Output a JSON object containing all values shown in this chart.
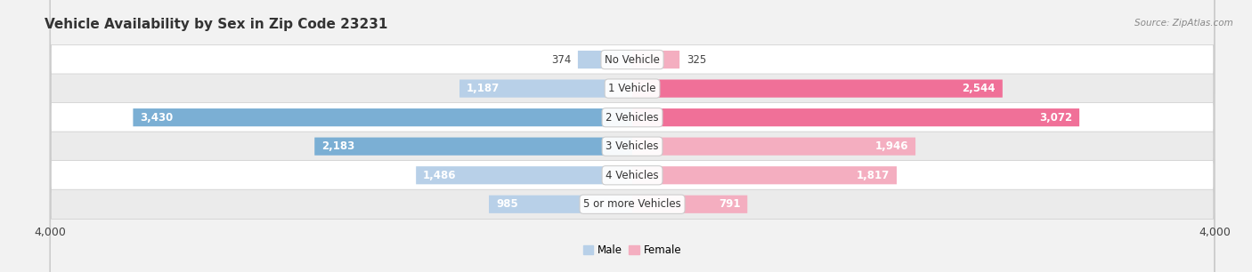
{
  "title": "Vehicle Availability by Sex in Zip Code 23231",
  "source": "Source: ZipAtlas.com",
  "categories": [
    "No Vehicle",
    "1 Vehicle",
    "2 Vehicles",
    "3 Vehicles",
    "4 Vehicles",
    "5 or more Vehicles"
  ],
  "male_values": [
    374,
    1187,
    3430,
    2183,
    1486,
    985
  ],
  "female_values": [
    325,
    2544,
    3072,
    1946,
    1817,
    791
  ],
  "male_color": "#7bafd4",
  "female_color": "#f07098",
  "male_color_light": "#b8d0e8",
  "female_color_light": "#f4aec0",
  "bar_height": 0.62,
  "xlim": 4000,
  "bg_color": "#f2f2f2",
  "row_color_even": "#ffffff",
  "row_color_odd": "#ebebeb",
  "title_fontsize": 11,
  "label_fontsize": 8.5,
  "value_fontsize": 8.5,
  "axis_fontsize": 9
}
